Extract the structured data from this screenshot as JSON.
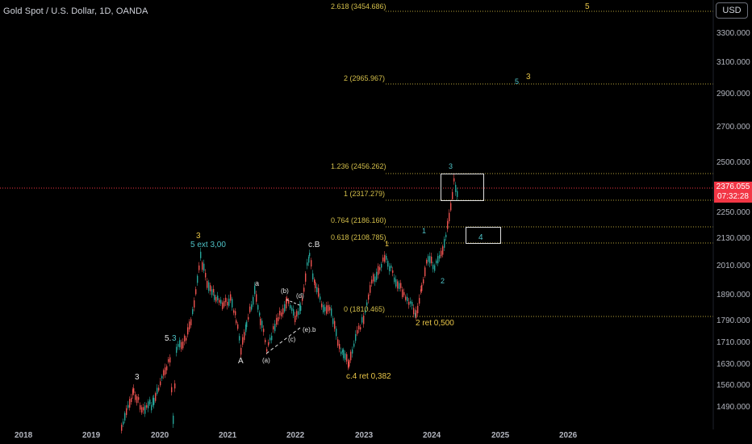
{
  "header": {
    "title": "Gold Spot / U.S. Dollar, 1D, OANDA",
    "currency_button": "USD"
  },
  "price_axis": {
    "ticks": [
      "3300.000",
      "3100.000",
      "2900.000",
      "2700.000",
      "2500.000",
      "2250.000",
      "2130.000",
      "2010.000",
      "1890.000",
      "1790.000",
      "1710.000",
      "1630.000",
      "1560.000",
      "1490.000"
    ],
    "current_price": "2376.055",
    "countdown": "07:32:28",
    "current_price_color": "#f23645"
  },
  "time_axis": {
    "labels": [
      "2018",
      "2019",
      "2020",
      "2021",
      "2022",
      "2023",
      "2024",
      "2025",
      "2026"
    ]
  },
  "fib_levels": [
    {
      "label": "2.618 (3454.686)"
    },
    {
      "label": "2 (2965.967)"
    },
    {
      "label": "1.236 (2456.262)"
    },
    {
      "label": "1 (2317.279)"
    },
    {
      "label": "0.764 (2186.160)"
    },
    {
      "label": "0.618 (2108.785)"
    },
    {
      "label": "0 (1810.465)"
    }
  ],
  "annotations": {
    "w3_top": "3",
    "w5_ext": "5 ext 3,00",
    "w3_left": "3",
    "w5_left": "5.",
    "w3_cyan_left": "3",
    "wA": "A",
    "wa": "a",
    "wb_paren": "(b)",
    "wd_paren": "(d)",
    "wa_paren": "(a)",
    "wc_paren": "(c)",
    "we_b": "(e).b",
    "wcB": "c.B",
    "c4": "c.4 ret 0,382",
    "w1": "1",
    "w2ret": "2 ret 0,500",
    "i1": "1",
    "i2": "2",
    "i3": "3",
    "i4": "4",
    "f5": "5",
    "f5c": "5",
    "f3": "3"
  },
  "colors": {
    "background": "#000000",
    "up_candle": "#26a69a",
    "down_candle": "#ef5350",
    "fib_line": "#d4bf4a",
    "wave_yellow": "#e8c547",
    "wave_cyan": "#4fc3c8"
  }
}
